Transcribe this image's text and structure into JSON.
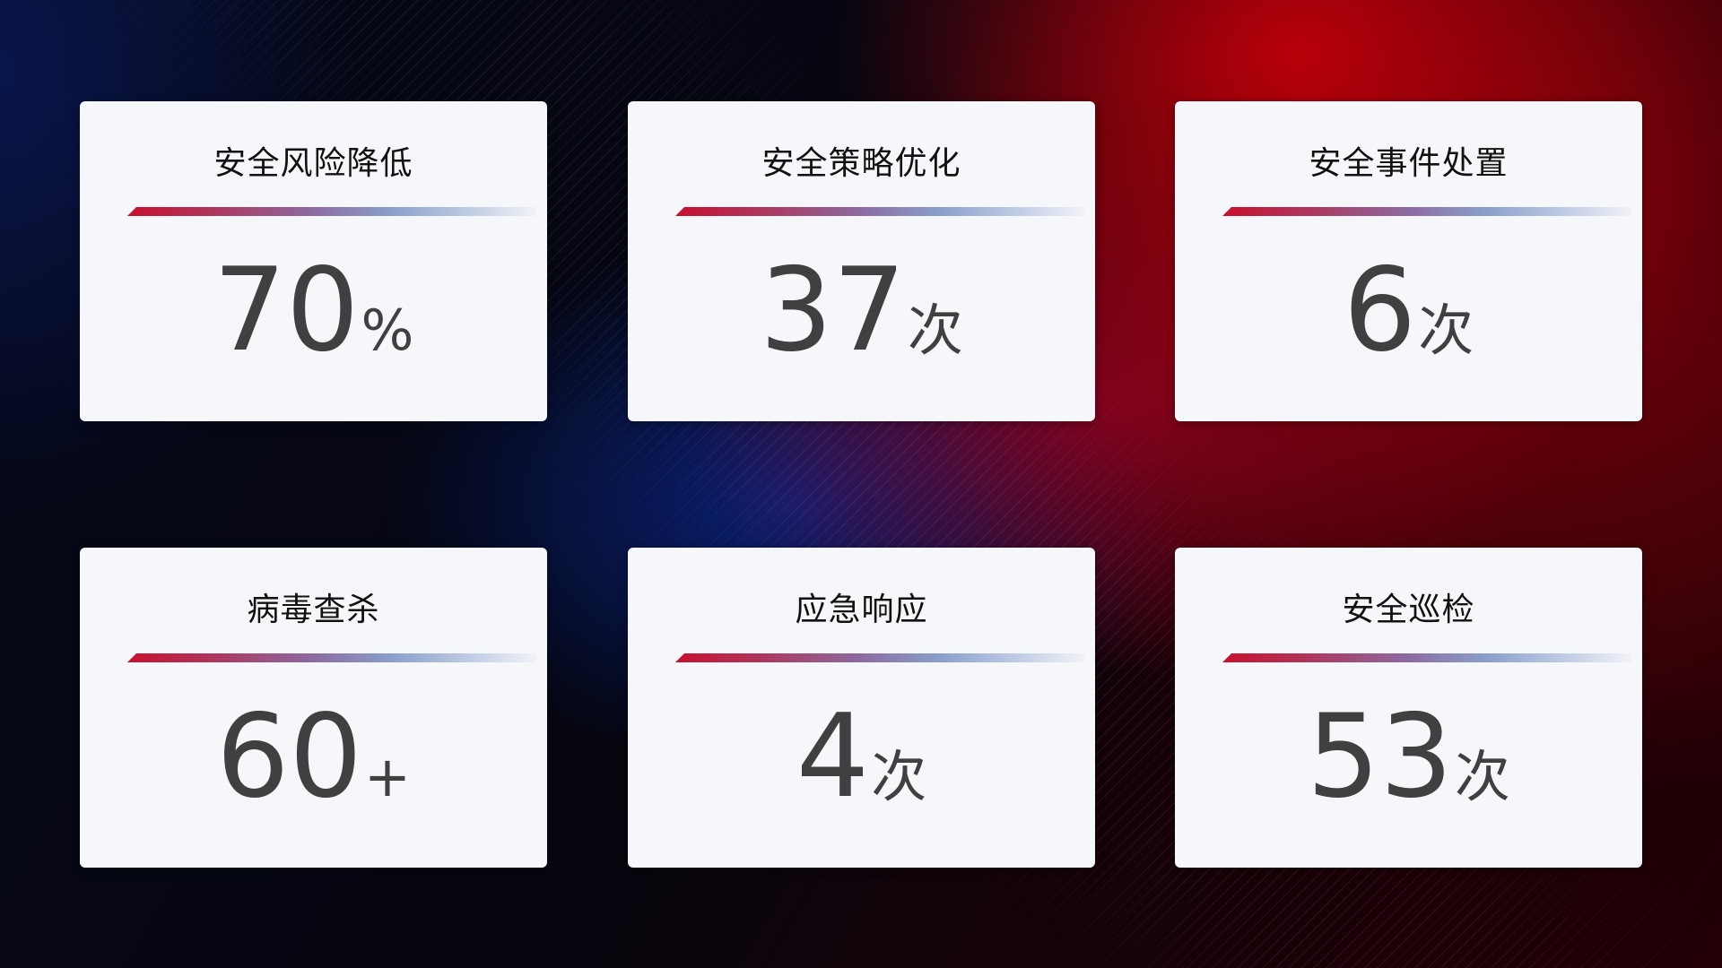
{
  "cards": [
    {
      "title": "安全风险降低",
      "value": "70",
      "unit": "%"
    },
    {
      "title": "安全策略优化",
      "value": "37",
      "unit": "次"
    },
    {
      "title": "安全事件处置",
      "value": "6",
      "unit": "次"
    },
    {
      "title": "病毒查杀",
      "value": "60",
      "unit": "+"
    },
    {
      "title": "应急响应",
      "value": "4",
      "unit": "次"
    },
    {
      "title": "安全巡检",
      "value": "53",
      "unit": "次"
    }
  ],
  "colors": {
    "accent_red": "#c8102e",
    "accent_blue": "#8aa0cc",
    "card_bg": "#f6f7fb",
    "value_text": "#404040"
  }
}
